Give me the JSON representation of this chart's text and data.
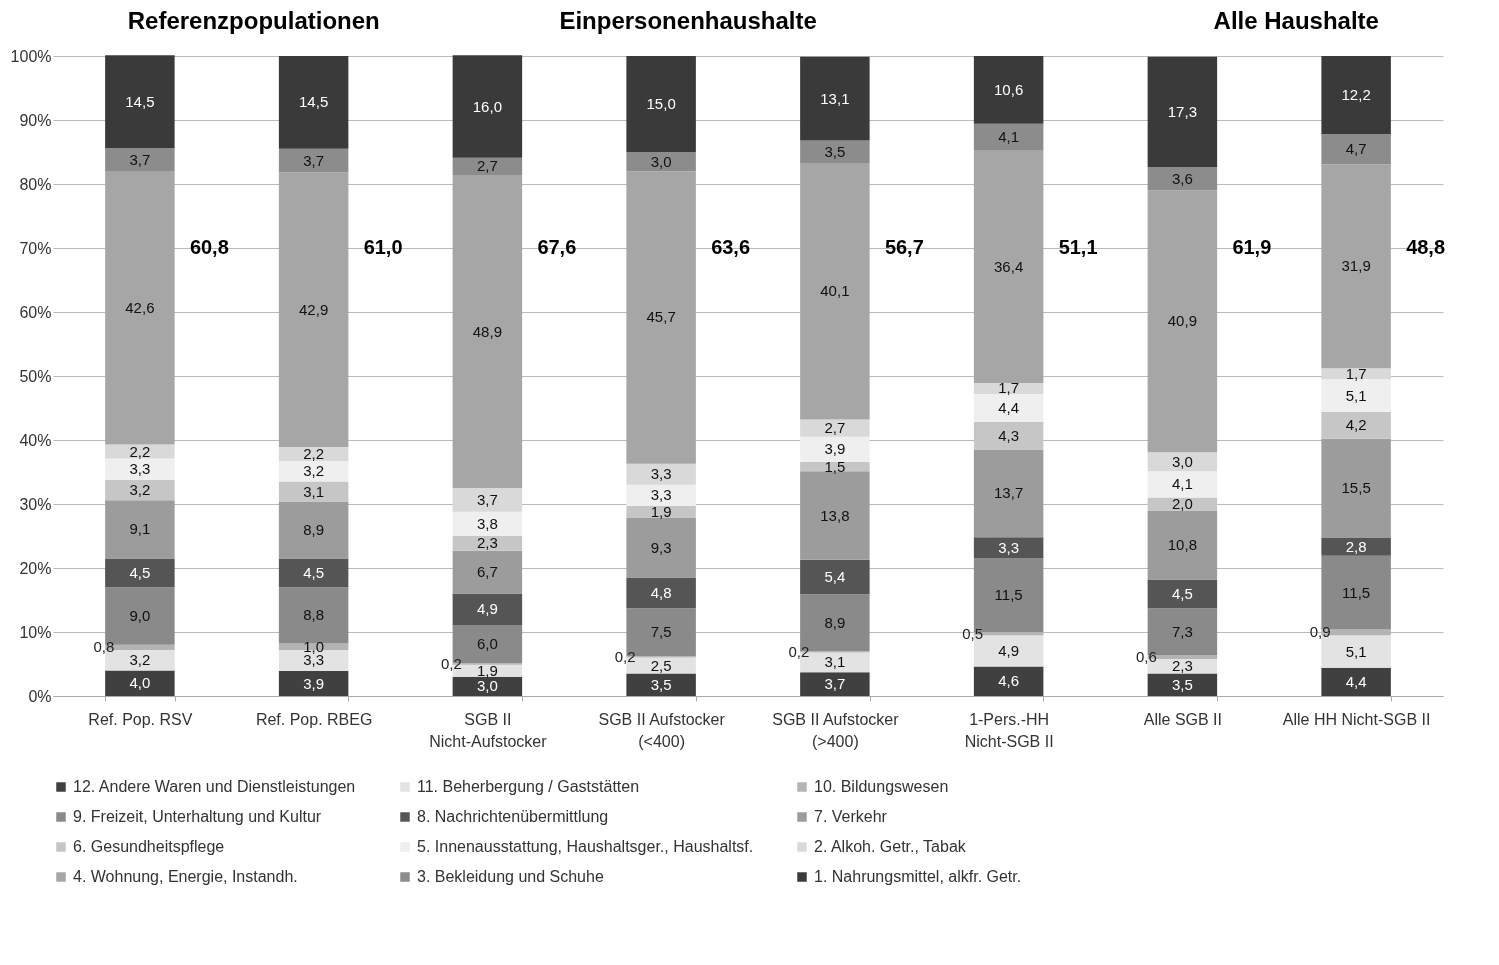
{
  "chart_data": {
    "type": "bar",
    "stacked": true,
    "grid": "y",
    "legend": "bottom",
    "categories": [
      "Ref. Pop. RSV",
      "Ref. Pop. RBEG",
      "SGB II Nicht-Aufstocker",
      "SGB II Aufstocker (<400)",
      "SGB II Aufstocker (>400)",
      "1-Pers.-HH Nicht-SGB II",
      "Alle SGB II",
      "Alle HH Nicht-SGB II"
    ],
    "ylim": [
      0,
      100
    ],
    "yticks": [
      {
        "value": 0,
        "label": "0%"
      },
      {
        "value": 10,
        "label": "10%"
      },
      {
        "value": 20,
        "label": "20%"
      },
      {
        "value": 30,
        "label": "30%"
      },
      {
        "value": 40,
        "label": "40%"
      },
      {
        "value": 50,
        "label": "50%"
      },
      {
        "value": 60,
        "label": "60%"
      },
      {
        "value": 70,
        "label": "70%"
      },
      {
        "value": 80,
        "label": "80%"
      },
      {
        "value": 90,
        "label": "90%"
      },
      {
        "value": 100,
        "label": "100%"
      }
    ],
    "series": [
      {
        "name": "12. Andere Waren und Dienstleistungen",
        "color": "#404040",
        "values": [
          4.0,
          3.9,
          3.0,
          3.5,
          3.7,
          4.6,
          3.5,
          4.4
        ],
        "value_labels": [
          "4,0",
          "3,9",
          "3,0",
          "3,5",
          "3,7",
          "4,6",
          "3,5",
          "4,4"
        ]
      },
      {
        "name": "11. Beherbergung / Gaststätten",
        "color": "#e3e3e3",
        "values": [
          3.2,
          3.3,
          1.9,
          2.5,
          3.1,
          4.9,
          2.3,
          5.1
        ],
        "value_labels": [
          "3,2",
          "3,3",
          "1,9",
          "2,5",
          "3,1",
          "4,9",
          "2,3",
          "5,1"
        ]
      },
      {
        "name": "10. Bildungswesen",
        "color": "#b4b4b4",
        "values": [
          0.8,
          1.0,
          0.2,
          0.2,
          0.2,
          0.5,
          0.6,
          0.9
        ],
        "value_labels": [
          "0,8",
          "1,0",
          "0,2",
          "0,2",
          "0,2",
          "0,5",
          "0,6",
          "0,9"
        ]
      },
      {
        "name": "9. Freizeit, Unterhaltung und Kultur",
        "color": "#8a8a8a",
        "values": [
          9.0,
          8.8,
          6.0,
          7.5,
          8.9,
          11.5,
          7.3,
          11.5
        ],
        "value_labels": [
          "9,0",
          "8,8",
          "6,0",
          "7,5",
          "8,9",
          "11,5",
          "7,3",
          "11,5"
        ]
      },
      {
        "name": "8. Nachrichtenübermittlung",
        "color": "#555555",
        "values": [
          4.5,
          4.5,
          4.9,
          4.8,
          5.4,
          3.3,
          4.5,
          2.8
        ],
        "value_labels": [
          "4,5",
          "4,5",
          "4,9",
          "4,8",
          "5,4",
          "3,3",
          "4,5",
          "2,8"
        ]
      },
      {
        "name": "7. Verkehr",
        "color": "#9c9c9c",
        "values": [
          9.1,
          8.9,
          6.7,
          9.3,
          13.8,
          13.7,
          10.8,
          15.5
        ],
        "value_labels": [
          "9,1",
          "8,9",
          "6,7",
          "9,3",
          "13,8",
          "13,7",
          "10,8",
          "15,5"
        ]
      },
      {
        "name": "6. Gesundheitspflege",
        "color": "#c6c6c6",
        "values": [
          3.2,
          3.1,
          2.3,
          1.9,
          1.5,
          4.3,
          2.0,
          4.2
        ],
        "value_labels": [
          "3,2",
          "3,1",
          "2,3",
          "1,9",
          "1,5",
          "4,3",
          "2,0",
          "4,2"
        ]
      },
      {
        "name": "5. Innenausstattung, Haushaltsger., Haushaltsf.",
        "color": "#efefef",
        "values": [
          3.3,
          3.2,
          3.8,
          3.3,
          3.9,
          4.4,
          4.1,
          5.1
        ],
        "value_labels": [
          "3,3",
          "3,2",
          "3,8",
          "3,3",
          "3,9",
          "4,4",
          "4,1",
          "5,1"
        ]
      },
      {
        "name": "2. Alkoh. Getr., Tabak",
        "color": "#d9d9d9",
        "values": [
          2.2,
          2.2,
          3.7,
          3.3,
          2.7,
          1.7,
          3.0,
          1.7
        ],
        "value_labels": [
          "2,2",
          "2,2",
          "3,7",
          "3,3",
          "2,7",
          "1,7",
          "3,0",
          "1,7"
        ]
      },
      {
        "name": "4. Wohnung, Energie, Instandh.",
        "color": "#a6a6a6",
        "values": [
          42.6,
          42.9,
          48.9,
          45.7,
          40.1,
          36.4,
          40.9,
          31.9
        ],
        "value_labels": [
          "42,6",
          "42,9",
          "48,9",
          "45,7",
          "40,1",
          "36,4",
          "40,9",
          "31,9"
        ]
      },
      {
        "name": "3. Bekleidung und Schuhe",
        "color": "#8c8c8c",
        "values": [
          3.7,
          3.7,
          2.7,
          3.0,
          3.5,
          4.1,
          3.6,
          4.7
        ],
        "value_labels": [
          "3,7",
          "3,7",
          "2,7",
          "3,0",
          "3,5",
          "4,1",
          "3,6",
          "4,7"
        ]
      },
      {
        "name": "1. Nahrungsmittel, alkfr. Getr.",
        "color": "#3a3a3a",
        "values": [
          14.5,
          14.5,
          16.0,
          15.0,
          13.1,
          10.6,
          17.3,
          12.2
        ],
        "value_labels": [
          "14,5",
          "14,5",
          "16,0",
          "15,0",
          "13,1",
          "10,6",
          "17,3",
          "12,2"
        ]
      }
    ],
    "annotations": [
      "Referenzpopulationen",
      "Einpersonenhaushalte",
      "Alle Haushalte",
      "60,8",
      "61,0",
      "67,6",
      "63,6",
      "56,7",
      "51,1",
      "61,9",
      "48,8"
    ]
  }
}
